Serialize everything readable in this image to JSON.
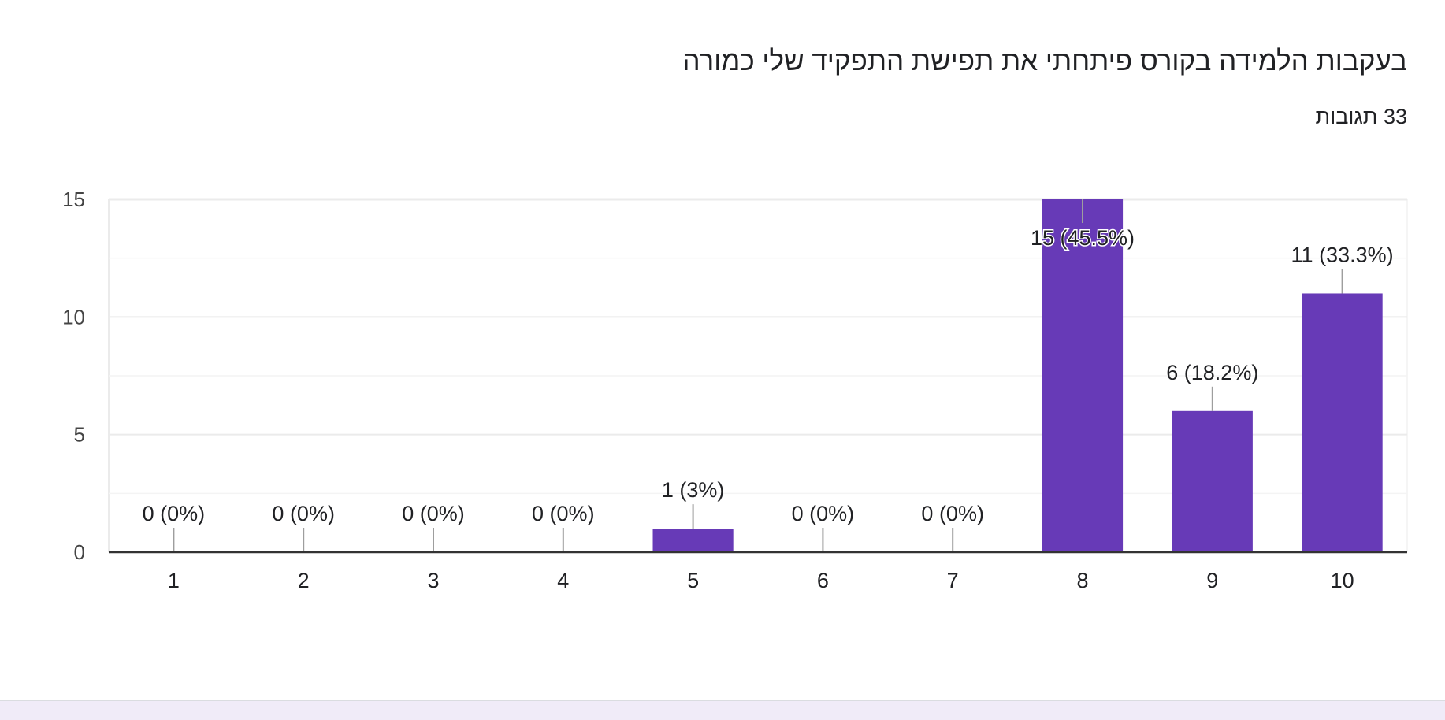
{
  "header": {
    "title": "בעקבות הלמידה בקורס פיתחתי את תפישת התפקיד שלי כמורה",
    "responses": "33 תגובות"
  },
  "colors": {
    "bar": "#673ab7",
    "grid": "#ebebeb",
    "axis": "#333333",
    "text": "#202124",
    "footer": "#f0ebf8"
  },
  "chart_data": {
    "type": "bar",
    "categories": [
      "1",
      "2",
      "3",
      "4",
      "5",
      "6",
      "7",
      "8",
      "9",
      "10"
    ],
    "values": [
      0,
      0,
      0,
      0,
      1,
      0,
      0,
      15,
      6,
      11
    ],
    "data_labels": [
      "0 (0%)",
      "0 (0%)",
      "0 (0%)",
      "0 (0%)",
      "1 (3%)",
      "0 (0%)",
      "0 (0%)",
      "15 (45.5%)",
      "6 (18.2%)",
      "11 (33.3%)"
    ],
    "y_ticks": [
      "0",
      "5",
      "10",
      "15"
    ],
    "ylim": [
      0,
      15
    ],
    "grid": true,
    "legend": "none"
  }
}
